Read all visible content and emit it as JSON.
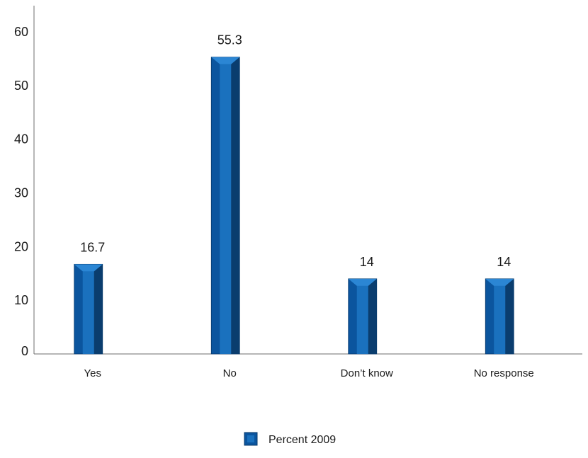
{
  "chart_data": {
    "type": "bar",
    "title": "",
    "xlabel": "",
    "ylabel": "",
    "categories": [
      "Yes",
      "No",
      "Don’t know",
      "No response"
    ],
    "series": [
      {
        "name": "Percent 2009",
        "values": [
          16.7,
          55.3,
          14,
          14
        ]
      }
    ],
    "data_labels": [
      "16.7",
      "55.3",
      "14",
      "14"
    ],
    "ylim": [
      0,
      60
    ],
    "yticks": [
      0,
      10,
      20,
      30,
      40,
      50,
      60
    ],
    "grid": false,
    "legend_position": "bottom",
    "colors": {
      "bar_face": "#1a71be",
      "bar_face_dark": "#0b559e",
      "bar_side": "#0a3d6e",
      "bar_top": "#2b86d4",
      "bar_edge": "#07386a",
      "axis": "#6e6e6e"
    }
  }
}
